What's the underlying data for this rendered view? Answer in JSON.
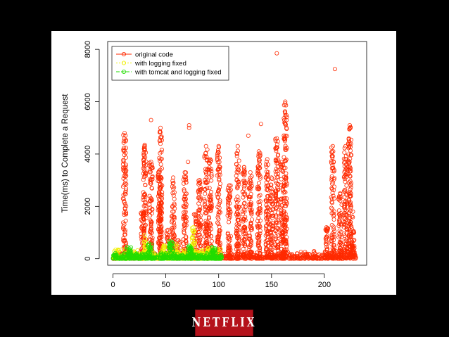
{
  "chart_data": {
    "type": "scatter",
    "title": "",
    "xlabel": "",
    "ylabel": "Time(ms) to Complete a Request",
    "xlim": [
      -5,
      240
    ],
    "ylim": [
      -250,
      8300
    ],
    "xticks": [
      "0",
      "50",
      "100",
      "150",
      "200"
    ],
    "yticks": [
      "0",
      "2000",
      "4000",
      "6000",
      "8000"
    ],
    "grid": false,
    "legend_position": "top-left",
    "series": [
      {
        "name": "original code",
        "color": "#ff2a00",
        "clusters": [
          {
            "x": 11,
            "peak": 4800
          },
          {
            "x": 28,
            "peak": 1800
          },
          {
            "x": 30,
            "peak": 4300
          },
          {
            "x": 36,
            "peak": 3700
          },
          {
            "x": 44,
            "peak": 3300
          },
          {
            "x": 45,
            "peak": 5000
          },
          {
            "x": 52,
            "peak": 1100
          },
          {
            "x": 57,
            "peak": 3100
          },
          {
            "x": 62,
            "peak": 700
          },
          {
            "x": 68,
            "peak": 3300
          },
          {
            "x": 78,
            "peak": 1700
          },
          {
            "x": 82,
            "peak": 3000
          },
          {
            "x": 88,
            "peak": 4300
          },
          {
            "x": 92,
            "peak": 3800
          },
          {
            "x": 100,
            "peak": 4300
          },
          {
            "x": 110,
            "peak": 2800
          },
          {
            "x": 118,
            "peak": 4300
          },
          {
            "x": 124,
            "peak": 3500
          },
          {
            "x": 130,
            "peak": 3300
          },
          {
            "x": 138,
            "peak": 4100
          },
          {
            "x": 146,
            "peak": 3800
          },
          {
            "x": 150,
            "peak": 3100
          },
          {
            "x": 155,
            "peak": 4600
          },
          {
            "x": 160,
            "peak": 3700
          },
          {
            "x": 163,
            "peak": 6000
          },
          {
            "x": 202,
            "peak": 1200
          },
          {
            "x": 208,
            "peak": 4300
          },
          {
            "x": 215,
            "peak": 2500
          },
          {
            "x": 220,
            "peak": 4300
          },
          {
            "x": 224,
            "peak": 5100
          },
          {
            "x": 227,
            "peak": 1800
          }
        ],
        "outliers": [
          {
            "x": 155,
            "y": 7850
          },
          {
            "x": 210,
            "y": 7250
          },
          {
            "x": 36,
            "y": 5300
          },
          {
            "x": 72,
            "y": 5100
          },
          {
            "x": 72,
            "y": 5000
          },
          {
            "x": 128,
            "y": 4700
          },
          {
            "x": 140,
            "y": 5150
          },
          {
            "x": 71,
            "y": 3700
          },
          {
            "x": 30,
            "y": 4350
          }
        ],
        "base_range": [
          0,
          230
        ],
        "base_level": 200
      },
      {
        "name": "with logging fixed",
        "color": "#f0f000",
        "clusters": [
          {
            "x": 30,
            "peak": 900
          },
          {
            "x": 48,
            "peak": 500
          },
          {
            "x": 60,
            "peak": 550
          },
          {
            "x": 76,
            "peak": 1200
          },
          {
            "x": 90,
            "peak": 400
          }
        ],
        "base_range": [
          0,
          102
        ],
        "base_level": 250
      },
      {
        "name": "with tomcat and logging fixed",
        "color": "#22dd00",
        "base_range": [
          0,
          103
        ],
        "base_level": 150,
        "spikes": [
          {
            "x": 15,
            "peak": 500
          },
          {
            "x": 35,
            "peak": 600
          },
          {
            "x": 55,
            "peak": 700
          },
          {
            "x": 73,
            "peak": 500
          },
          {
            "x": 95,
            "peak": 450
          }
        ]
      }
    ]
  },
  "brand": {
    "logo_text": "NETFLIX"
  }
}
